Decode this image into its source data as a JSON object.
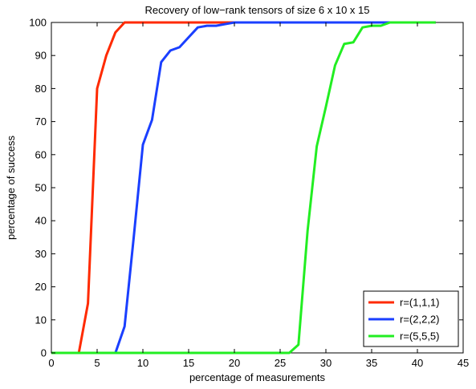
{
  "chart_data": {
    "type": "line",
    "title": "Recovery of low−rank tensors of size 6 x 10 x 15",
    "xlabel": "percentage of measurements",
    "ylabel": "percentage of success",
    "xlim": [
      0,
      45
    ],
    "ylim": [
      0,
      100
    ],
    "xticks": [
      0,
      5,
      10,
      15,
      20,
      25,
      30,
      35,
      40,
      45
    ],
    "yticks": [
      0,
      10,
      20,
      30,
      40,
      50,
      60,
      70,
      80,
      90,
      100
    ],
    "grid": false,
    "legend_position": "bottom-right",
    "series": [
      {
        "name": "r=(1,1,1)",
        "color": "#ff2a00",
        "x": [
          0,
          1,
          2,
          3,
          4,
          5,
          6,
          7,
          8,
          9,
          10,
          12,
          14,
          16,
          18,
          20,
          22,
          24,
          26,
          28,
          30,
          32,
          34,
          36,
          38,
          40,
          42
        ],
        "y": [
          0,
          0,
          0,
          0,
          15,
          80,
          90,
          97,
          100,
          100,
          100,
          100,
          100,
          100,
          100,
          100,
          100,
          100,
          100,
          100,
          100,
          100,
          100,
          100,
          100,
          100,
          100
        ]
      },
      {
        "name": "r=(2,2,2)",
        "color": "#1a3fff",
        "x": [
          0,
          1,
          2,
          3,
          4,
          5,
          6,
          7,
          8,
          9,
          10,
          11,
          12,
          13,
          14,
          15,
          16,
          17,
          18,
          19,
          20,
          22,
          24,
          26,
          28,
          30,
          32,
          34,
          36,
          38,
          40,
          42
        ],
        "y": [
          0,
          0,
          0,
          0,
          0,
          0,
          0,
          0,
          8,
          35,
          63,
          70.5,
          88,
          91.5,
          92.5,
          95.5,
          98.5,
          99,
          99,
          99.5,
          100,
          100,
          100,
          100,
          100,
          100,
          100,
          100,
          100,
          100,
          100,
          100
        ]
      },
      {
        "name": "r=(5,5,5)",
        "color": "#22ee22",
        "x": [
          0,
          2,
          4,
          6,
          8,
          10,
          12,
          14,
          16,
          18,
          20,
          22,
          24,
          26,
          27,
          28,
          29,
          30,
          31,
          32,
          33,
          34,
          35,
          36,
          37,
          38,
          40,
          42
        ],
        "y": [
          0,
          0,
          0,
          0,
          0,
          0,
          0,
          0,
          0,
          0,
          0,
          0,
          0,
          0,
          2.5,
          37,
          62.5,
          74.5,
          87,
          93.5,
          94,
          98.5,
          99,
          99,
          100,
          100,
          100,
          100
        ]
      }
    ]
  }
}
